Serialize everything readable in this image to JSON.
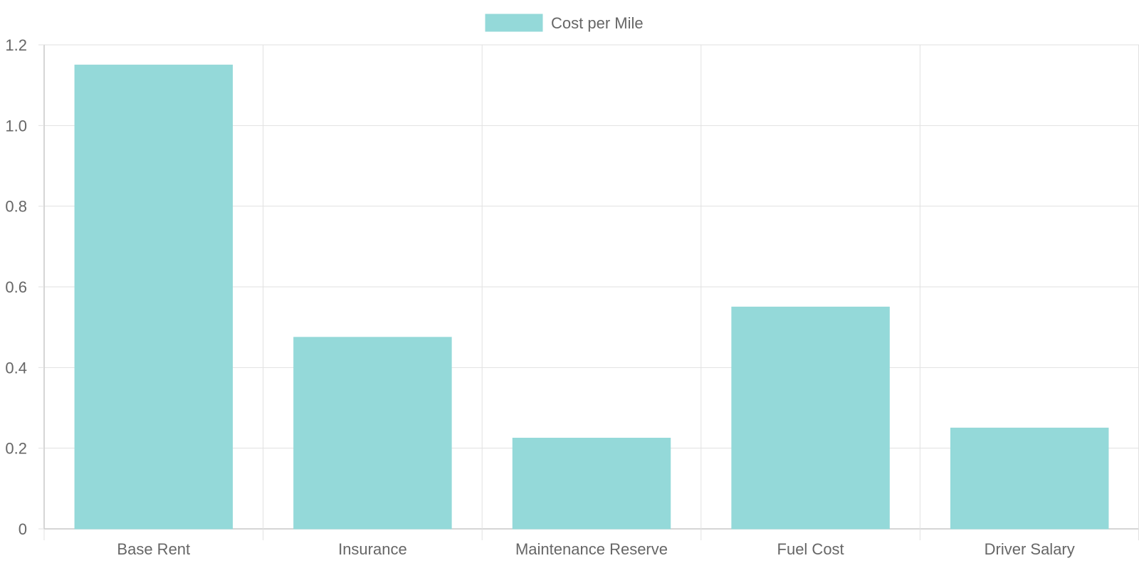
{
  "chart_data": {
    "type": "bar",
    "categories": [
      "Base Rent",
      "Insurance",
      "Maintenance Reserve",
      "Fuel Cost",
      "Driver Salary"
    ],
    "series": [
      {
        "name": "Cost per Mile",
        "values": [
          1.15,
          0.475,
          0.225,
          0.55,
          0.25
        ]
      }
    ],
    "ylim": [
      0,
      1.2
    ],
    "yticks": [
      "0",
      "0.2",
      "0.4",
      "0.6",
      "0.8",
      "1.0",
      "1.2"
    ],
    "grid": true,
    "legend_position": "top",
    "colors": {
      "bar_fill": "#94d9d9",
      "bar_stroke": "#94d9d9",
      "grid": "#e1e1e1",
      "axis": "#c8c8c8",
      "text": "#666666"
    }
  }
}
